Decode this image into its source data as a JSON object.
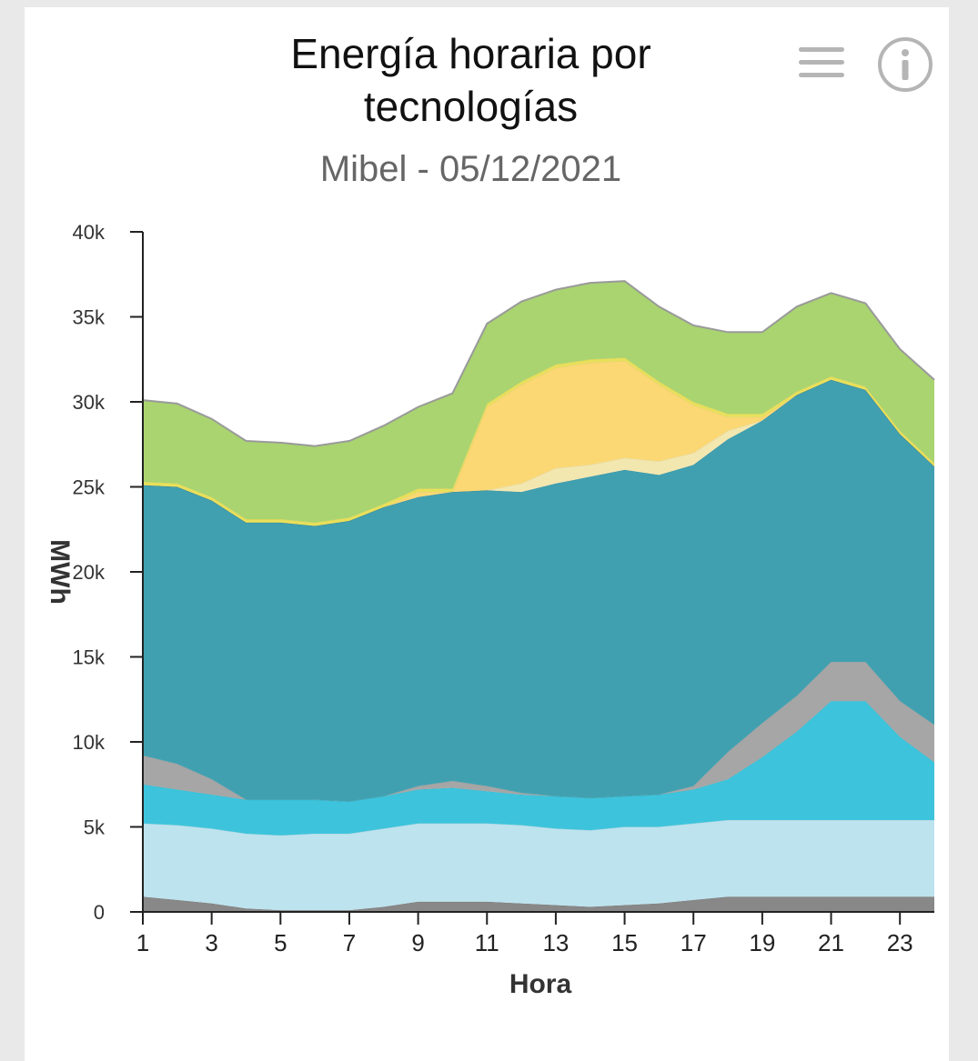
{
  "chart": {
    "title_line1": "Energía horaria por",
    "title_line2": "tecnologías",
    "subtitle": "Mibel - 05/12/2021",
    "menu_icon": "hamburger-menu-icon",
    "info_icon": "info-circle-icon"
  },
  "chart_data": {
    "type": "area",
    "stacked": true,
    "title": "Energía horaria por tecnologías",
    "subtitle": "Mibel - 05/12/2021",
    "xlabel": "Hora",
    "ylabel": "MWh",
    "x": [
      1,
      2,
      3,
      4,
      5,
      6,
      7,
      8,
      9,
      10,
      11,
      12,
      13,
      14,
      15,
      16,
      17,
      18,
      19,
      20,
      21,
      22,
      23,
      24
    ],
    "xticks": [
      "1",
      "3",
      "5",
      "7",
      "9",
      "11",
      "13",
      "15",
      "17",
      "19",
      "21",
      "23"
    ],
    "ylim": [
      0,
      40000
    ],
    "yticks": [
      0,
      5000,
      10000,
      15000,
      20000,
      25000,
      30000,
      35000,
      40000
    ],
    "ytick_labels": [
      "0",
      "5k",
      "10k",
      "15k",
      "20k",
      "25k",
      "30k",
      "35k",
      "40k"
    ],
    "grid": false,
    "legend": false,
    "series": [
      {
        "color": "#888888",
        "values": [
          900,
          700,
          500,
          200,
          100,
          100,
          100,
          300,
          600,
          600,
          600,
          500,
          400,
          300,
          400,
          500,
          700,
          900,
          900,
          900,
          900,
          900,
          900,
          900
        ]
      },
      {
        "color": "#bde3ee",
        "values": [
          4300,
          4400,
          4400,
          4400,
          4400,
          4500,
          4500,
          4600,
          4600,
          4600,
          4600,
          4600,
          4500,
          4500,
          4600,
          4500,
          4500,
          4500,
          4500,
          4500,
          4500,
          4500,
          4500,
          4500
        ]
      },
      {
        "color": "#3dc4dc",
        "values": [
          2300,
          2100,
          2000,
          2000,
          2100,
          2000,
          1900,
          1900,
          2000,
          2100,
          1900,
          1800,
          1900,
          1900,
          1800,
          1900,
          2000,
          2400,
          3700,
          5200,
          7000,
          7000,
          4900,
          3400
        ]
      },
      {
        "color": "#a6a6a6",
        "values": [
          1700,
          1500,
          900,
          0,
          0,
          0,
          0,
          0,
          200,
          400,
          300,
          100,
          0,
          0,
          0,
          0,
          200,
          1600,
          2000,
          2100,
          2300,
          2300,
          2100,
          2200
        ]
      },
      {
        "color": "#41a0b0",
        "values": [
          15900,
          16300,
          16400,
          16300,
          16300,
          16100,
          16500,
          17000,
          17000,
          17000,
          17400,
          17700,
          18400,
          18900,
          19200,
          18800,
          18900,
          18400,
          17800,
          17700,
          16600,
          16000,
          15700,
          15200
        ]
      },
      {
        "color": "#f3e7b0",
        "values": [
          0,
          0,
          0,
          0,
          0,
          0,
          0,
          0,
          0,
          0,
          0,
          500,
          900,
          700,
          700,
          800,
          700,
          500,
          0,
          0,
          0,
          0,
          0,
          0
        ]
      },
      {
        "color": "#fbd873",
        "values": [
          0,
          0,
          0,
          0,
          0,
          0,
          0,
          0,
          300,
          0,
          4900,
          5800,
          5900,
          6000,
          5700,
          4500,
          2800,
          800,
          200,
          0,
          0,
          0,
          0,
          0
        ]
      },
      {
        "color": "#e8e05a",
        "values": [
          200,
          200,
          200,
          200,
          200,
          200,
          200,
          200,
          200,
          200,
          200,
          200,
          200,
          200,
          200,
          200,
          200,
          200,
          200,
          200,
          200,
          200,
          200,
          200
        ]
      },
      {
        "color": "#a9d46f",
        "values": [
          4800,
          4700,
          4600,
          4600,
          4500,
          4500,
          4500,
          4600,
          4800,
          5600,
          4700,
          4700,
          4400,
          4500,
          4500,
          4400,
          4500,
          4800,
          4800,
          5000,
          4900,
          4900,
          4800,
          4900
        ]
      }
    ]
  }
}
